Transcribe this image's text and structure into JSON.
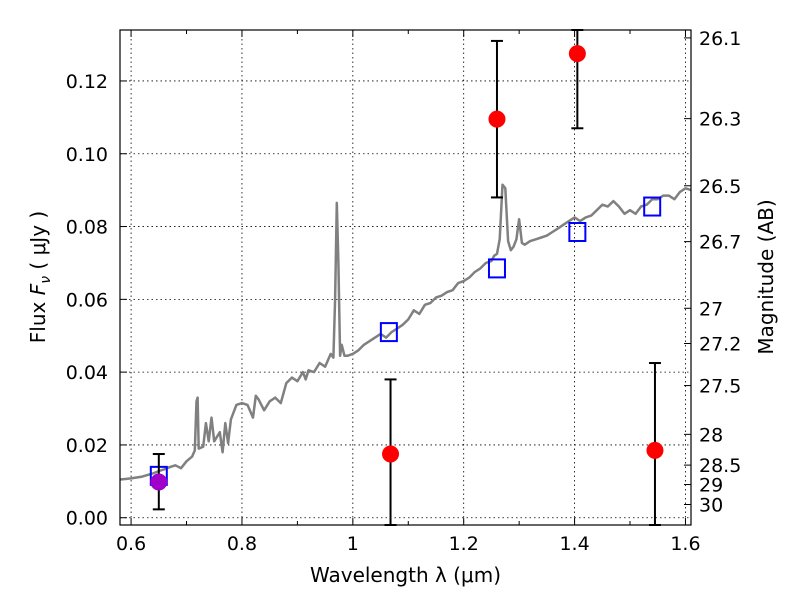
{
  "chart_data": {
    "type": "scatter",
    "x_axis": {
      "label": "Wavelength  λ (μm)",
      "lim": [
        0.58,
        1.61
      ],
      "ticks": [
        0.6,
        0.8,
        1.0,
        1.2,
        1.4,
        1.6
      ],
      "tick_labels": [
        "0.6",
        "0.8",
        "1",
        "1.2",
        "1.4",
        "1.6"
      ],
      "minor_ticks": [
        0.7,
        0.9,
        1.1,
        1.3,
        1.5
      ]
    },
    "y_axis": {
      "label": "Flux  F_ν  ( μJy )",
      "label_parts": [
        "Flux ",
        "F",
        "ν",
        " ( μJy )"
      ],
      "lim": [
        -0.002,
        0.134
      ],
      "ticks": [
        0.0,
        0.02,
        0.04,
        0.06,
        0.08,
        0.1,
        0.12
      ],
      "tick_labels": [
        "0.00",
        "0.02",
        "0.04",
        "0.06",
        "0.08",
        "0.10",
        "0.12"
      ]
    },
    "y2_axis": {
      "label": "Magnitude (AB)",
      "scale": "AB magnitude of flux in μJy",
      "ticks": [
        26.1,
        26.3,
        26.5,
        26.7,
        27,
        27.2,
        27.5,
        28,
        28.5,
        29,
        30
      ],
      "tick_labels": [
        "26.1",
        "26.3",
        "26.5",
        "26.7",
        "27",
        "27.2",
        "27.5",
        "28",
        "28.5",
        "29",
        "30"
      ]
    },
    "grid": true,
    "series": [
      {
        "kind": "line",
        "color": "#808080",
        "points": [
          [
            0.58,
            0.0105
          ],
          [
            0.6,
            0.0108
          ],
          [
            0.62,
            0.0113
          ],
          [
            0.64,
            0.0122
          ],
          [
            0.65,
            0.0128
          ],
          [
            0.66,
            0.0133
          ],
          [
            0.67,
            0.0139
          ],
          [
            0.68,
            0.0144
          ],
          [
            0.69,
            0.0136
          ],
          [
            0.7,
            0.0155
          ],
          [
            0.71,
            0.0168
          ],
          [
            0.715,
            0.0185
          ],
          [
            0.718,
            0.032
          ],
          [
            0.72,
            0.033
          ],
          [
            0.722,
            0.019
          ],
          [
            0.73,
            0.0195
          ],
          [
            0.735,
            0.026
          ],
          [
            0.74,
            0.021
          ],
          [
            0.745,
            0.0275
          ],
          [
            0.75,
            0.021
          ],
          [
            0.76,
            0.0235
          ],
          [
            0.765,
            0.018
          ],
          [
            0.77,
            0.026
          ],
          [
            0.775,
            0.0205
          ],
          [
            0.78,
            0.027
          ],
          [
            0.79,
            0.031
          ],
          [
            0.8,
            0.0315
          ],
          [
            0.81,
            0.031
          ],
          [
            0.82,
            0.0275
          ],
          [
            0.825,
            0.0335
          ],
          [
            0.83,
            0.0325
          ],
          [
            0.84,
            0.0295
          ],
          [
            0.85,
            0.032
          ],
          [
            0.86,
            0.033
          ],
          [
            0.87,
            0.0315
          ],
          [
            0.88,
            0.037
          ],
          [
            0.89,
            0.0385
          ],
          [
            0.9,
            0.0375
          ],
          [
            0.91,
            0.04
          ],
          [
            0.915,
            0.038
          ],
          [
            0.92,
            0.0405
          ],
          [
            0.93,
            0.04
          ],
          [
            0.94,
            0.0425
          ],
          [
            0.95,
            0.0415
          ],
          [
            0.96,
            0.045
          ],
          [
            0.965,
            0.044
          ],
          [
            0.968,
            0.06
          ],
          [
            0.971,
            0.0865
          ],
          [
            0.974,
            0.07
          ],
          [
            0.977,
            0.0445
          ],
          [
            0.98,
            0.0475
          ],
          [
            0.985,
            0.0445
          ],
          [
            0.99,
            0.0445
          ],
          [
            1.0,
            0.045
          ],
          [
            1.01,
            0.046
          ],
          [
            1.02,
            0.0475
          ],
          [
            1.03,
            0.0485
          ],
          [
            1.04,
            0.0495
          ],
          [
            1.05,
            0.0505
          ],
          [
            1.06,
            0.0495
          ],
          [
            1.07,
            0.051
          ],
          [
            1.08,
            0.052
          ],
          [
            1.09,
            0.053
          ],
          [
            1.1,
            0.0545
          ],
          [
            1.11,
            0.057
          ],
          [
            1.12,
            0.056
          ],
          [
            1.13,
            0.0585
          ],
          [
            1.14,
            0.059
          ],
          [
            1.15,
            0.0605
          ],
          [
            1.16,
            0.061
          ],
          [
            1.17,
            0.062
          ],
          [
            1.18,
            0.0625
          ],
          [
            1.19,
            0.0645
          ],
          [
            1.2,
            0.065
          ],
          [
            1.21,
            0.066
          ],
          [
            1.22,
            0.0675
          ],
          [
            1.23,
            0.0685
          ],
          [
            1.24,
            0.07
          ],
          [
            1.25,
            0.0705
          ],
          [
            1.255,
            0.072
          ],
          [
            1.26,
            0.0725
          ],
          [
            1.265,
            0.0765
          ],
          [
            1.27,
            0.0915
          ],
          [
            1.275,
            0.0905
          ],
          [
            1.28,
            0.076
          ],
          [
            1.285,
            0.0735
          ],
          [
            1.29,
            0.0745
          ],
          [
            1.295,
            0.0765
          ],
          [
            1.3,
            0.082
          ],
          [
            1.305,
            0.0755
          ],
          [
            1.31,
            0.075
          ],
          [
            1.32,
            0.076
          ],
          [
            1.33,
            0.0765
          ],
          [
            1.34,
            0.077
          ],
          [
            1.35,
            0.0775
          ],
          [
            1.36,
            0.0785
          ],
          [
            1.37,
            0.0795
          ],
          [
            1.38,
            0.0805
          ],
          [
            1.39,
            0.0815
          ],
          [
            1.4,
            0.0825
          ],
          [
            1.41,
            0.0815
          ],
          [
            1.42,
            0.0825
          ],
          [
            1.43,
            0.083
          ],
          [
            1.44,
            0.0845
          ],
          [
            1.45,
            0.086
          ],
          [
            1.46,
            0.0855
          ],
          [
            1.47,
            0.087
          ],
          [
            1.48,
            0.0855
          ],
          [
            1.49,
            0.0835
          ],
          [
            1.5,
            0.0845
          ],
          [
            1.51,
            0.0835
          ],
          [
            1.52,
            0.0855
          ],
          [
            1.53,
            0.086
          ],
          [
            1.54,
            0.0875
          ],
          [
            1.55,
            0.0875
          ],
          [
            1.56,
            0.0885
          ],
          [
            1.57,
            0.0885
          ],
          [
            1.58,
            0.0875
          ],
          [
            1.59,
            0.0895
          ],
          [
            1.6,
            0.0905
          ],
          [
            1.61,
            0.09
          ]
        ]
      },
      {
        "kind": "open-square",
        "color": "#0000ff",
        "points": [
          [
            0.65,
            0.0115
          ],
          [
            1.065,
            0.051
          ],
          [
            1.26,
            0.0685
          ],
          [
            1.405,
            0.0785
          ],
          [
            1.54,
            0.0855
          ]
        ]
      },
      {
        "kind": "filled-circle",
        "color": "#ff0000",
        "error_color": "#000000",
        "points": [
          {
            "x": 1.068,
            "y": 0.0175,
            "ylow": -0.002,
            "yhigh": 0.038
          },
          {
            "x": 1.26,
            "y": 0.1095,
            "ylow": 0.088,
            "yhigh": 0.131
          },
          {
            "x": 1.405,
            "y": 0.1275,
            "ylow": 0.107,
            "yhigh": 0.134
          },
          {
            "x": 1.545,
            "y": 0.0185,
            "ylow": -0.002,
            "yhigh": 0.0425
          }
        ]
      },
      {
        "kind": "filled-circle",
        "color": "#a000c8",
        "error_color": "#000000",
        "points": [
          {
            "x": 0.65,
            "y": 0.0098,
            "ylow": 0.0023,
            "yhigh": 0.0175
          }
        ]
      }
    ]
  }
}
